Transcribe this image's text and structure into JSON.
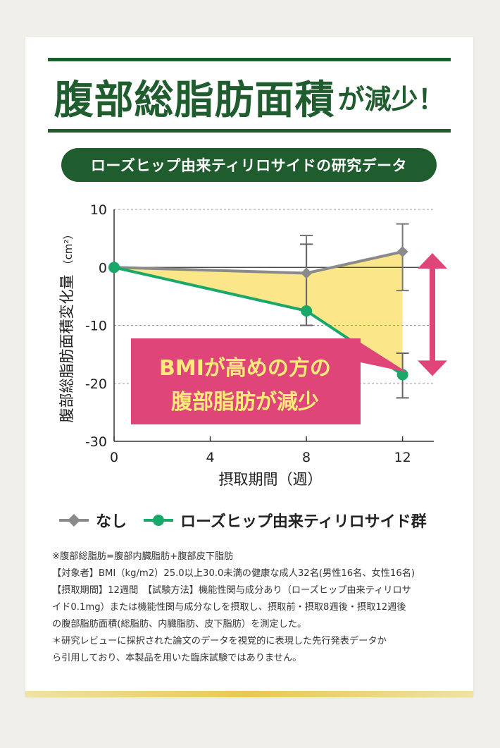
{
  "headline": {
    "main": "腹部総脂肪面積",
    "suffix": "が減少！"
  },
  "pill": "ローズヒップ由来ティリロサイドの研究データ",
  "colors": {
    "green_dark": "#1f5c2e",
    "series_none": "#8a8a8a",
    "series_treat": "#1aa86a",
    "fill": "#fbe789",
    "callout": "#e0457a"
  },
  "chart_data": {
    "type": "line",
    "xlabel": "摂取期間（週）",
    "ylabel": "腹部総脂肪面積変化量",
    "yunit": "cm²",
    "x_ticks": [
      0,
      4,
      8,
      12
    ],
    "y_ticks": [
      10,
      0,
      -10,
      -20,
      -30
    ],
    "xlim": [
      0,
      13.3
    ],
    "ylim": [
      -30,
      10
    ],
    "grid": "dashed horizontal",
    "series": [
      {
        "name": "なし",
        "marker": "diamond",
        "color": "#8a8a8a",
        "x": [
          0,
          8,
          12
        ],
        "y": [
          0,
          -1,
          2.7
        ],
        "err_hi": [
          null,
          5.5,
          7.5
        ],
        "err_lo": [
          null,
          -10,
          -4
        ]
      },
      {
        "name": "ローズヒップ由来ティリロサイド群",
        "marker": "circle",
        "color": "#1aa86a",
        "x": [
          0,
          8,
          12
        ],
        "y": [
          0,
          -7.5,
          -18.5
        ],
        "err_hi": [
          null,
          4,
          -14.8
        ],
        "err_lo": [
          null,
          -10,
          -22.5
        ]
      }
    ],
    "annotation": {
      "lines": [
        "BMIが高めの方の",
        "腹部脂肪が減少"
      ]
    },
    "legend": "bottom"
  },
  "notes": [
    "※腹部総脂肪=腹部内臓脂肪+腹部皮下脂肪",
    "【対象者】BMI（kg/m2）25.0以上30.0未満の健康な成人32名(男性16名、女性16名)",
    "【摂取期間】12週間　【試験方法】機能性関与成分あり（ローズヒップ由来ティリロサ",
    "イド0.1mg）または機能性関与成分なしを摂取し、摂取前・摂取8週後・摂取12週後",
    "の腹部脂肪面積(総脂肪、内臓脂肪、皮下脂肪）を測定した。",
    "＊研究レビューに採択された論文のデータを視覚的に表現した先行発表データか",
    "ら引用しており、本製品を用いた臨床試験ではありません。"
  ]
}
